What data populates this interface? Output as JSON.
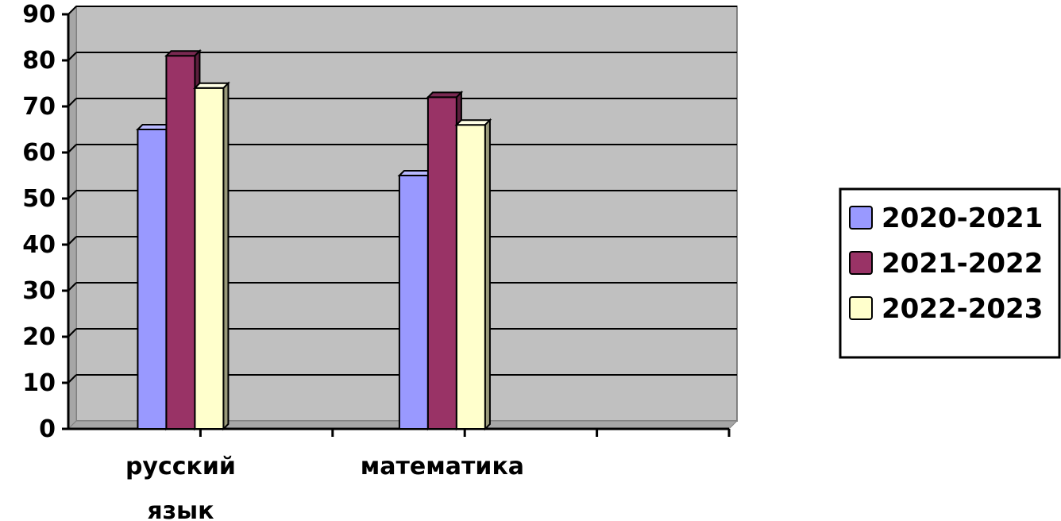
{
  "chart_data": {
    "type": "bar",
    "categories": [
      "русский язык",
      "математика",
      ""
    ],
    "category_lines": [
      [
        "русский",
        "язык"
      ],
      [
        "математика"
      ],
      [
        ""
      ]
    ],
    "series": [
      {
        "name": "2020-2021",
        "values": [
          65,
          55,
          null
        ],
        "color": "#9999ff",
        "side": "#6b6bcc",
        "top": "#b8b8ff"
      },
      {
        "name": "2021-2022",
        "values": [
          81,
          72,
          null
        ],
        "color": "#993366",
        "side": "#5c1f3d",
        "top": "#7a2952"
      },
      {
        "name": "2022-2023",
        "values": [
          74,
          66,
          null
        ],
        "color": "#ffffcc",
        "side": "#99997a",
        "top": "#ffffe6"
      }
    ],
    "ylim": [
      0,
      90
    ],
    "yticks": [
      0,
      10,
      20,
      30,
      40,
      50,
      60,
      70,
      80,
      90
    ],
    "grid": true,
    "legend_position": "right",
    "plot_background": "#c0c0c0",
    "title": "",
    "xlabel": "",
    "ylabel": ""
  }
}
